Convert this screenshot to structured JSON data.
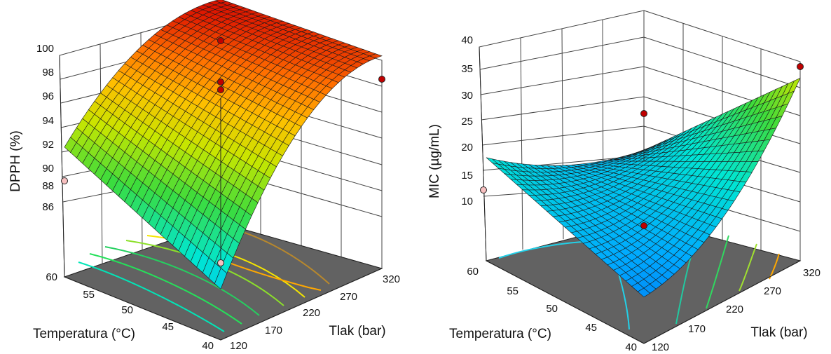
{
  "chart_data": [
    {
      "type": "surface3d",
      "zlabel": "DPPH (%)",
      "xlabel": "Tlak (bar)",
      "ylabel": "Temperatura (°C)",
      "x_ticks": [
        "120",
        "170",
        "220",
        "270",
        "320"
      ],
      "y_ticks": [
        "40",
        "45",
        "50",
        "55",
        "60"
      ],
      "z_ticks": [
        "86",
        "88",
        "90",
        "92",
        "94",
        "96",
        "98",
        "100"
      ],
      "xlim": [
        120,
        320
      ],
      "ylim": [
        40,
        60
      ],
      "zlim": [
        84,
        100
      ],
      "surface_corners": {
        "p120_t40": 83.0,
        "p120_t60": 89.0,
        "p320_t40": 96.5,
        "p320_t60": 98.0
      },
      "design_points": [
        {
          "x": 320,
          "y": 40,
          "z": 97.2
        },
        {
          "x": 120,
          "y": 60,
          "z": 88.4
        },
        {
          "x": 220,
          "y": 50,
          "z": 100.0
        },
        {
          "x": 220,
          "y": 50,
          "z": 97.6
        },
        {
          "x": 220,
          "y": 50,
          "z": 96.8
        },
        {
          "x": 220,
          "y": 50,
          "z": 84.0
        }
      ],
      "contour_colors": [
        "#00e6b8",
        "#25e05a",
        "#8ce02a",
        "#f4e600",
        "#ffa800"
      ]
    },
    {
      "type": "surface3d",
      "zlabel": "MIC (µg/mL)",
      "xlabel": "Tlak (bar)",
      "ylabel": "Temperatura (°C)",
      "x_ticks": [
        "120",
        "170",
        "220",
        "270",
        "320"
      ],
      "y_ticks": [
        "40",
        "45",
        "50",
        "55",
        "60"
      ],
      "z_ticks": [
        "10",
        "15",
        "20",
        "25",
        "30",
        "35",
        "40"
      ],
      "xlim": [
        120,
        320
      ],
      "ylim": [
        40,
        60
      ],
      "zlim": [
        5,
        40
      ],
      "surface_corners": {
        "p120_t40": 7.0,
        "p120_t60": 14.0,
        "p320_t40": 37.5,
        "p320_t60": 14.5
      },
      "design_points": [
        {
          "x": 320,
          "y": 40,
          "z": 37.5
        },
        {
          "x": 120,
          "y": 60,
          "z": 12.0
        },
        {
          "x": 220,
          "y": 50,
          "z": 28.0
        },
        {
          "x": 220,
          "y": 50,
          "z": 5.5
        }
      ],
      "contour_colors": [
        "#22d0e8",
        "#22c8a0",
        "#30d860",
        "#a0e030",
        "#ffa800"
      ]
    }
  ]
}
